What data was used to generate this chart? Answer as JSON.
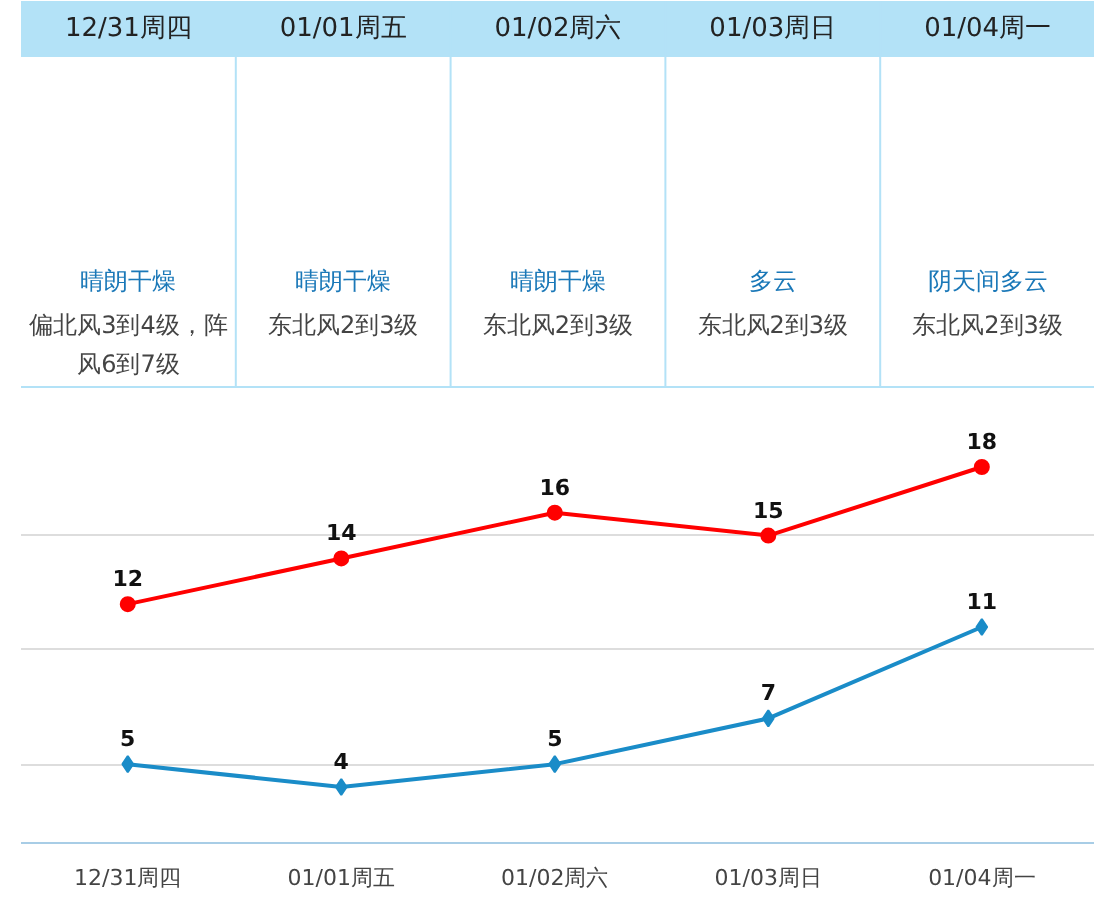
{
  "chart_data": [
    {
      "type": "other",
      "categories": [
        "12/31周四",
        "01/01周五",
        "01/02周六",
        "01/03周日",
        "01/04周一"
      ],
      "annotations": [
        "晴朗干燥",
        "偏北风3到4级，阵风6到7级",
        "晴朗干燥",
        "东北风2到3级",
        "晴朗干燥",
        "东北风2到3级",
        "多云",
        "东北风2到3级",
        "阴天间多云",
        "东北风2到3级"
      ]
    },
    {
      "type": "line",
      "categories": [
        "12/31周四",
        "01/01周五",
        "01/02周六",
        "01/03周日",
        "01/04周一"
      ],
      "series": [
        {
          "color": "#ff0000",
          "marker": "circle",
          "values": [
            12,
            14,
            16,
            15,
            18
          ]
        },
        {
          "color": "#1a8cc8",
          "marker": "diamond",
          "values": [
            5,
            4,
            5,
            7,
            11
          ]
        }
      ],
      "yticks": [
        {
          "value": 5,
          "label": null
        },
        {
          "value": 10,
          "label": null
        },
        {
          "value": 15,
          "label": null
        }
      ],
      "tick_labels": "x",
      "grid": "y",
      "data_labels": true
    }
  ]
}
